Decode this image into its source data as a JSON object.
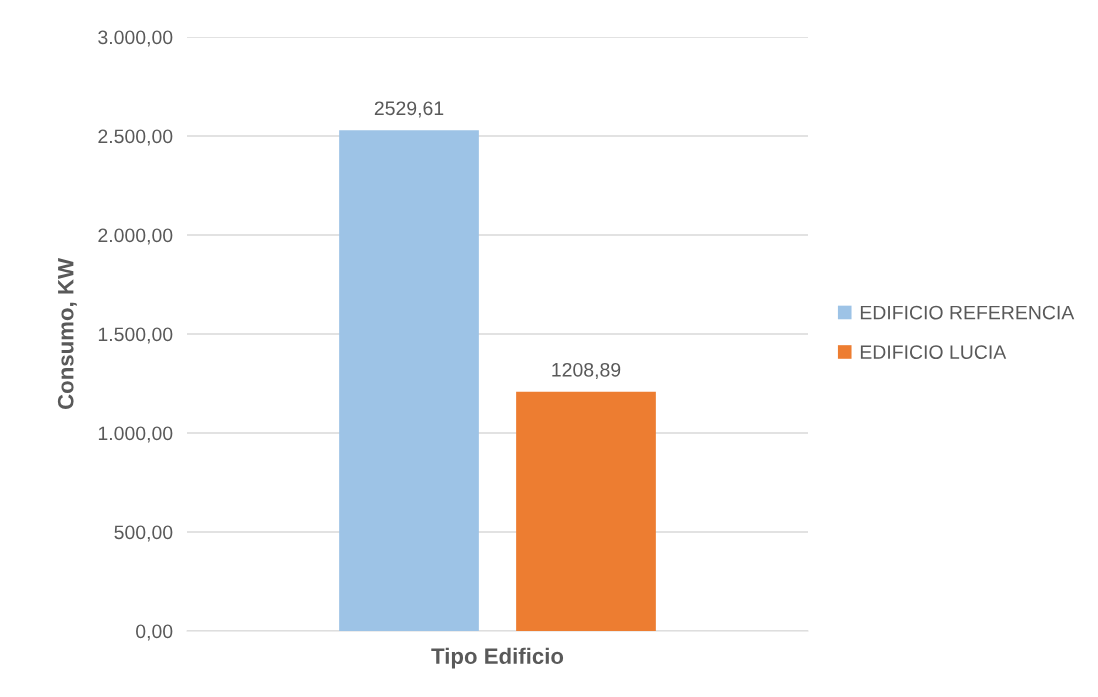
{
  "chart_data": {
    "type": "bar",
    "xlabel": "Tipo Edificio",
    "ylabel": "Consumo, KW",
    "categories": [
      null
    ],
    "series": [
      {
        "name": "EDIFICIO REFERENCIA",
        "color": "#9dc3e6",
        "values": [
          2529.61
        ],
        "value_labels": [
          "2529,61"
        ]
      },
      {
        "name": "EDIFICIO LUCIA",
        "color": "#ed7d31",
        "values": [
          1208.89
        ],
        "value_labels": [
          "1208,89"
        ]
      }
    ],
    "ylim": [
      0,
      3000
    ],
    "yticks": [
      {
        "value": 0,
        "label": "0,00"
      },
      {
        "value": 500,
        "label": "500,00"
      },
      {
        "value": 1000,
        "label": "1.000,00"
      },
      {
        "value": 1500,
        "label": "1.500,00"
      },
      {
        "value": 2000,
        "label": "2.000,00"
      },
      {
        "value": 2500,
        "label": "2.500,00"
      },
      {
        "value": 3000,
        "label": "3.000,00"
      }
    ],
    "grid": "y",
    "legend": "right"
  }
}
